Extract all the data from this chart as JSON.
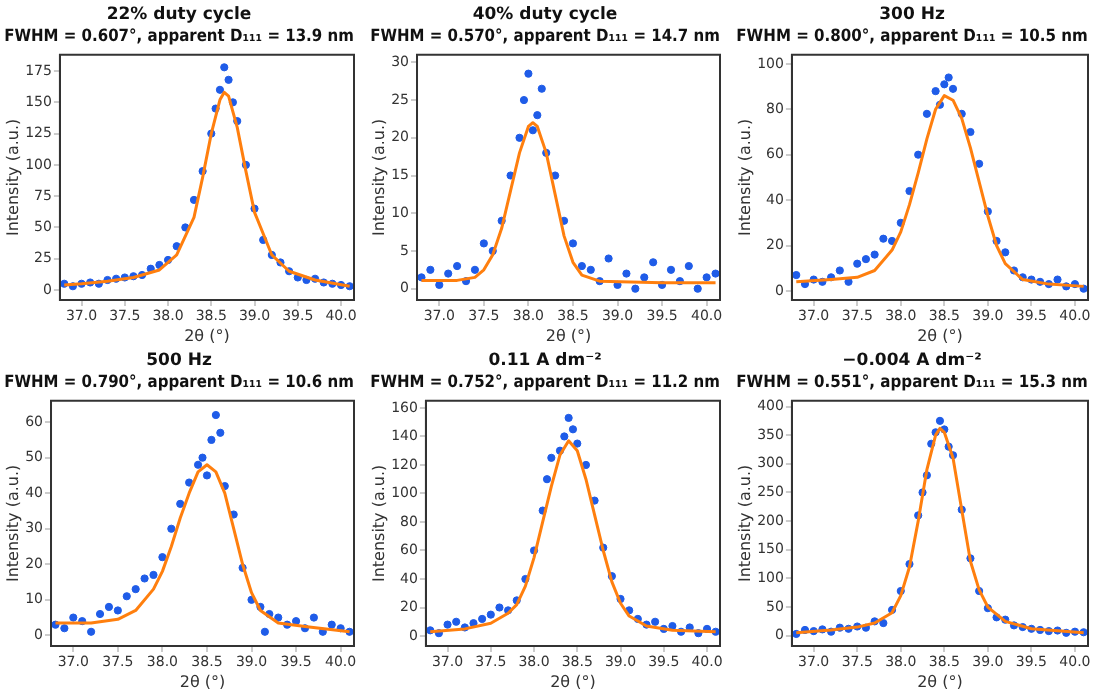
{
  "chart_data": [
    {
      "type": "scatter",
      "title": "22% duty cycle",
      "subtitle": "FWHM = 0.607°, apparent D₁₁₁ = 13.9 nm",
      "xlabel": "2θ (°)",
      "ylabel": "Intensity (a.u.)",
      "grid": false,
      "legend": false,
      "xlim": [
        36.75,
        40.15
      ],
      "xticks": [
        {
          "value": 37,
          "label": "37.0"
        },
        {
          "value": 37.5,
          "label": "37.5"
        },
        {
          "value": 38,
          "label": "38.0"
        },
        {
          "value": 38.5,
          "label": "38.5"
        },
        {
          "value": 39,
          "label": "39.0"
        },
        {
          "value": 39.5,
          "label": "39.5"
        },
        {
          "value": 40,
          "label": "40.0"
        }
      ],
      "ylim": [
        -8,
        188
      ],
      "yticks": [
        0,
        25,
        50,
        75,
        100,
        125,
        150,
        175
      ],
      "series": [
        {
          "type": "scatter",
          "marker": "circle",
          "color": "#1f5ce8",
          "x": [
            36.8,
            36.9,
            37.0,
            37.1,
            37.2,
            37.3,
            37.4,
            37.5,
            37.6,
            37.7,
            37.8,
            37.9,
            38.0,
            38.1,
            38.2,
            38.3,
            38.4,
            38.5,
            38.55,
            38.6,
            38.65,
            38.7,
            38.75,
            38.8,
            38.9,
            39.0,
            39.1,
            39.2,
            39.3,
            39.4,
            39.5,
            39.6,
            39.7,
            39.8,
            39.9,
            40.0,
            40.1
          ],
          "values": [
            5,
            3,
            5,
            6,
            5,
            8,
            9,
            10,
            11,
            12,
            17,
            20,
            24,
            35,
            50,
            72,
            95,
            125,
            145,
            160,
            178,
            168,
            150,
            135,
            100,
            65,
            40,
            28,
            22,
            15,
            10,
            8,
            9,
            6,
            5,
            4,
            3
          ]
        },
        {
          "type": "line",
          "marker": "none",
          "color": "#ff7f0e",
          "x": [
            36.8,
            37.0,
            37.3,
            37.6,
            37.9,
            38.1,
            38.3,
            38.4,
            38.5,
            38.6,
            38.65,
            38.7,
            38.8,
            38.9,
            39.0,
            39.2,
            39.4,
            39.7,
            40.1
          ],
          "values": [
            4,
            5,
            7,
            10,
            16,
            28,
            58,
            90,
            125,
            152,
            158,
            155,
            130,
            95,
            62,
            28,
            15,
            8,
            3
          ]
        }
      ]
    },
    {
      "type": "scatter",
      "title": "40% duty cycle",
      "subtitle": "FWHM = 0.570°, apparent D₁₁₁ = 14.7 nm",
      "xlabel": "2θ (°)",
      "ylabel": "Intensity (a.u.)",
      "grid": false,
      "legend": false,
      "xlim": [
        36.75,
        40.15
      ],
      "xticks": [
        {
          "value": 37,
          "label": "37.0"
        },
        {
          "value": 37.5,
          "label": "37.5"
        },
        {
          "value": 38,
          "label": "38.0"
        },
        {
          "value": 38.5,
          "label": "38.5"
        },
        {
          "value": 39,
          "label": "39.0"
        },
        {
          "value": 39.5,
          "label": "39.5"
        },
        {
          "value": 40,
          "label": "40.0"
        }
      ],
      "ylim": [
        -1.5,
        31
      ],
      "yticks": [
        0,
        5,
        10,
        15,
        20,
        25,
        30
      ],
      "series": [
        {
          "type": "scatter",
          "marker": "circle",
          "color": "#1f5ce8",
          "x": [
            36.8,
            36.9,
            37.0,
            37.1,
            37.2,
            37.3,
            37.4,
            37.5,
            37.6,
            37.7,
            37.8,
            37.9,
            37.95,
            38.0,
            38.05,
            38.1,
            38.15,
            38.2,
            38.3,
            38.4,
            38.5,
            38.6,
            38.7,
            38.8,
            38.9,
            39.0,
            39.1,
            39.2,
            39.3,
            39.4,
            39.5,
            39.6,
            39.7,
            39.8,
            39.9,
            40.0,
            40.1
          ],
          "values": [
            1.5,
            2.5,
            0.5,
            2,
            3,
            1,
            2.5,
            6,
            5,
            9,
            15,
            20,
            25,
            28.5,
            21,
            23,
            26.5,
            18,
            15,
            9,
            6,
            3,
            2.5,
            1,
            4,
            0.5,
            2,
            0,
            1.5,
            3.5,
            0.5,
            2.5,
            1,
            3,
            0,
            1.5,
            2
          ]
        },
        {
          "type": "line",
          "marker": "none",
          "color": "#ff7f0e",
          "x": [
            36.8,
            37.2,
            37.4,
            37.5,
            37.6,
            37.7,
            37.8,
            37.9,
            38.0,
            38.05,
            38.1,
            38.2,
            38.3,
            38.4,
            38.5,
            38.6,
            38.8,
            39.5,
            40.1
          ],
          "values": [
            1.1,
            1.1,
            1.5,
            2.5,
            4.5,
            8,
            13,
            18,
            21.5,
            22,
            21.5,
            18,
            12.5,
            7,
            3.5,
            1.8,
            1,
            0.8,
            0.8
          ]
        }
      ]
    },
    {
      "type": "scatter",
      "title": "300 Hz",
      "subtitle": "FWHM = 0.800°, apparent D₁₁₁ = 10.5 nm",
      "xlabel": "2θ (°)",
      "ylabel": "Intensity (a.u.)",
      "grid": false,
      "legend": false,
      "xlim": [
        36.75,
        40.15
      ],
      "xticks": [
        {
          "value": 37,
          "label": "37.0"
        },
        {
          "value": 37.5,
          "label": "37.5"
        },
        {
          "value": 38,
          "label": "38.0"
        },
        {
          "value": 38.5,
          "label": "38.5"
        },
        {
          "value": 39,
          "label": "39.0"
        },
        {
          "value": 39.5,
          "label": "39.5"
        },
        {
          "value": 40,
          "label": "40.0"
        }
      ],
      "ylim": [
        -4,
        104
      ],
      "yticks": [
        0,
        20,
        40,
        60,
        80,
        100
      ],
      "series": [
        {
          "type": "scatter",
          "marker": "circle",
          "color": "#1f5ce8",
          "x": [
            36.8,
            36.9,
            37.0,
            37.1,
            37.2,
            37.3,
            37.4,
            37.5,
            37.6,
            37.7,
            37.8,
            37.9,
            38.0,
            38.1,
            38.2,
            38.3,
            38.4,
            38.45,
            38.5,
            38.55,
            38.6,
            38.7,
            38.8,
            38.9,
            39.0,
            39.1,
            39.2,
            39.3,
            39.4,
            39.5,
            39.6,
            39.7,
            39.8,
            39.9,
            40.0,
            40.1
          ],
          "values": [
            7,
            3,
            5,
            4,
            6,
            9,
            4,
            12,
            14,
            16,
            23,
            22,
            30,
            44,
            60,
            78,
            88,
            82,
            91,
            94,
            89,
            78,
            70,
            56,
            35,
            22,
            17,
            9,
            6,
            5,
            4,
            3,
            5,
            2,
            3,
            1
          ]
        },
        {
          "type": "line",
          "marker": "none",
          "color": "#ff7f0e",
          "x": [
            36.8,
            37.2,
            37.5,
            37.7,
            37.9,
            38.0,
            38.1,
            38.2,
            38.3,
            38.4,
            38.5,
            38.6,
            38.7,
            38.8,
            38.9,
            39.0,
            39.1,
            39.2,
            39.4,
            39.7,
            40.1
          ],
          "values": [
            4,
            5,
            6,
            9,
            18,
            26,
            38,
            52,
            67,
            80,
            86,
            84,
            76,
            63,
            48,
            33,
            20,
            12,
            5,
            3,
            2
          ]
        }
      ]
    },
    {
      "type": "scatter",
      "title": "500 Hz",
      "subtitle": "FWHM = 0.790°, apparent D₁₁₁ = 10.6 nm",
      "xlabel": "2θ (°)",
      "ylabel": "Intensity (a.u.)",
      "grid": false,
      "legend": false,
      "xlim": [
        36.75,
        40.15
      ],
      "xticks": [
        {
          "value": 37,
          "label": "37.0"
        },
        {
          "value": 37.5,
          "label": "37.5"
        },
        {
          "value": 38,
          "label": "38.0"
        },
        {
          "value": 38.5,
          "label": "38.5"
        },
        {
          "value": 39,
          "label": "39.0"
        },
        {
          "value": 39.5,
          "label": "39.5"
        },
        {
          "value": 40,
          "label": "40.0"
        }
      ],
      "ylim": [
        -3,
        66
      ],
      "yticks": [
        0,
        10,
        20,
        30,
        40,
        50,
        60
      ],
      "series": [
        {
          "type": "scatter",
          "marker": "circle",
          "color": "#1f5ce8",
          "x": [
            36.8,
            36.9,
            37.0,
            37.1,
            37.2,
            37.3,
            37.4,
            37.5,
            37.6,
            37.7,
            37.8,
            37.9,
            38.0,
            38.1,
            38.2,
            38.3,
            38.4,
            38.45,
            38.5,
            38.55,
            38.6,
            38.65,
            38.7,
            38.8,
            38.9,
            39.0,
            39.1,
            39.15,
            39.2,
            39.3,
            39.4,
            39.5,
            39.6,
            39.7,
            39.8,
            39.9,
            40.0,
            40.1
          ],
          "values": [
            3,
            2,
            5,
            4,
            1,
            6,
            8,
            7,
            11,
            13,
            16,
            17,
            22,
            30,
            37,
            43,
            48,
            50,
            45,
            55,
            62,
            57,
            42,
            34,
            19,
            10,
            8,
            1,
            6,
            5,
            3,
            4,
            2,
            5,
            1,
            3,
            2,
            1
          ]
        },
        {
          "type": "line",
          "marker": "none",
          "color": "#ff7f0e",
          "x": [
            36.8,
            37.2,
            37.5,
            37.7,
            37.9,
            38.0,
            38.1,
            38.2,
            38.3,
            38.4,
            38.5,
            38.6,
            38.7,
            38.8,
            38.9,
            39.0,
            39.1,
            39.3,
            39.6,
            40.1
          ],
          "values": [
            3.5,
            3.5,
            4.5,
            7,
            13,
            18,
            25,
            33,
            40,
            46,
            48,
            46,
            40,
            30,
            20,
            12,
            7,
            3.5,
            2.5,
            1
          ]
        }
      ]
    },
    {
      "type": "scatter",
      "title": "0.11 A dm⁻²",
      "subtitle": "FWHM = 0.752°, apparent D₁₁₁ = 11.2 nm",
      "xlabel": "2θ (°)",
      "ylabel": "Intensity (a.u.)",
      "grid": false,
      "legend": false,
      "xlim": [
        36.75,
        40.15
      ],
      "xticks": [
        {
          "value": 37,
          "label": "37.0"
        },
        {
          "value": 37.5,
          "label": "37.5"
        },
        {
          "value": 38,
          "label": "38.0"
        },
        {
          "value": 38.5,
          "label": "38.5"
        },
        {
          "value": 39,
          "label": "39.0"
        },
        {
          "value": 39.5,
          "label": "39.5"
        },
        {
          "value": 40,
          "label": "40.0"
        }
      ],
      "ylim": [
        -7,
        165
      ],
      "yticks": [
        0,
        20,
        40,
        60,
        80,
        100,
        120,
        140,
        160
      ],
      "series": [
        {
          "type": "scatter",
          "marker": "circle",
          "color": "#1f5ce8",
          "x": [
            36.8,
            36.9,
            37.0,
            37.1,
            37.2,
            37.3,
            37.4,
            37.5,
            37.6,
            37.7,
            37.8,
            37.9,
            38.0,
            38.1,
            38.15,
            38.2,
            38.3,
            38.35,
            38.4,
            38.45,
            38.5,
            38.6,
            38.7,
            38.8,
            38.9,
            39.0,
            39.1,
            39.2,
            39.3,
            39.4,
            39.5,
            39.6,
            39.7,
            39.8,
            39.9,
            40.0,
            40.1
          ],
          "values": [
            4,
            2,
            8,
            10,
            6,
            9,
            12,
            15,
            20,
            18,
            25,
            40,
            60,
            88,
            110,
            125,
            130,
            140,
            153,
            145,
            135,
            120,
            95,
            62,
            42,
            26,
            18,
            12,
            8,
            10,
            5,
            7,
            3,
            6,
            2,
            5,
            3
          ]
        },
        {
          "type": "line",
          "marker": "none",
          "color": "#ff7f0e",
          "x": [
            36.8,
            37.2,
            37.5,
            37.7,
            37.8,
            37.9,
            38.0,
            38.1,
            38.2,
            38.3,
            38.4,
            38.5,
            38.6,
            38.7,
            38.8,
            38.9,
            39.0,
            39.1,
            39.3,
            39.6,
            40.1
          ],
          "values": [
            3,
            5,
            9,
            16,
            22,
            35,
            55,
            80,
            105,
            127,
            137,
            130,
            110,
            85,
            60,
            38,
            23,
            14,
            7,
            4,
            3
          ]
        }
      ]
    },
    {
      "type": "scatter",
      "title": "−0.004 A dm⁻²",
      "subtitle": "FWHM = 0.551°, apparent D₁₁₁ = 15.3 nm",
      "xlabel": "2θ (°)",
      "ylabel": "Intensity (a.u.)",
      "grid": false,
      "legend": false,
      "xlim": [
        36.75,
        40.15
      ],
      "xticks": [
        {
          "value": 37,
          "label": "37.0"
        },
        {
          "value": 37.5,
          "label": "37.5"
        },
        {
          "value": 38,
          "label": "38.0"
        },
        {
          "value": 38.5,
          "label": "38.5"
        },
        {
          "value": 39,
          "label": "39.0"
        },
        {
          "value": 39.5,
          "label": "39.5"
        },
        {
          "value": 40,
          "label": "40.0"
        }
      ],
      "ylim": [
        -18,
        410
      ],
      "yticks": [
        0,
        50,
        100,
        150,
        200,
        250,
        300,
        350,
        400
      ],
      "series": [
        {
          "type": "scatter",
          "marker": "circle",
          "color": "#1f5ce8",
          "x": [
            36.8,
            36.9,
            37.0,
            37.1,
            37.2,
            37.3,
            37.4,
            37.5,
            37.6,
            37.7,
            37.8,
            37.9,
            38.0,
            38.1,
            38.2,
            38.25,
            38.3,
            38.35,
            38.4,
            38.45,
            38.5,
            38.55,
            38.6,
            38.7,
            38.8,
            38.9,
            39.0,
            39.1,
            39.2,
            39.3,
            39.4,
            39.5,
            39.6,
            39.7,
            39.8,
            39.9,
            40.0,
            40.1
          ],
          "values": [
            3,
            10,
            8,
            11,
            7,
            14,
            12,
            16,
            14,
            25,
            22,
            45,
            78,
            125,
            210,
            250,
            280,
            335,
            355,
            375,
            360,
            330,
            315,
            220,
            135,
            78,
            48,
            32,
            28,
            18,
            15,
            12,
            10,
            8,
            9,
            5,
            7,
            6
          ]
        },
        {
          "type": "line",
          "marker": "none",
          "color": "#ff7f0e",
          "x": [
            36.8,
            37.2,
            37.5,
            37.7,
            37.9,
            38.0,
            38.1,
            38.2,
            38.3,
            38.4,
            38.45,
            38.5,
            38.6,
            38.7,
            38.8,
            38.9,
            39.0,
            39.2,
            39.5,
            40.1
          ],
          "values": [
            5,
            10,
            15,
            22,
            40,
            70,
            120,
            200,
            290,
            350,
            362,
            355,
            310,
            220,
            130,
            80,
            50,
            25,
            12,
            5
          ]
        }
      ]
    }
  ]
}
